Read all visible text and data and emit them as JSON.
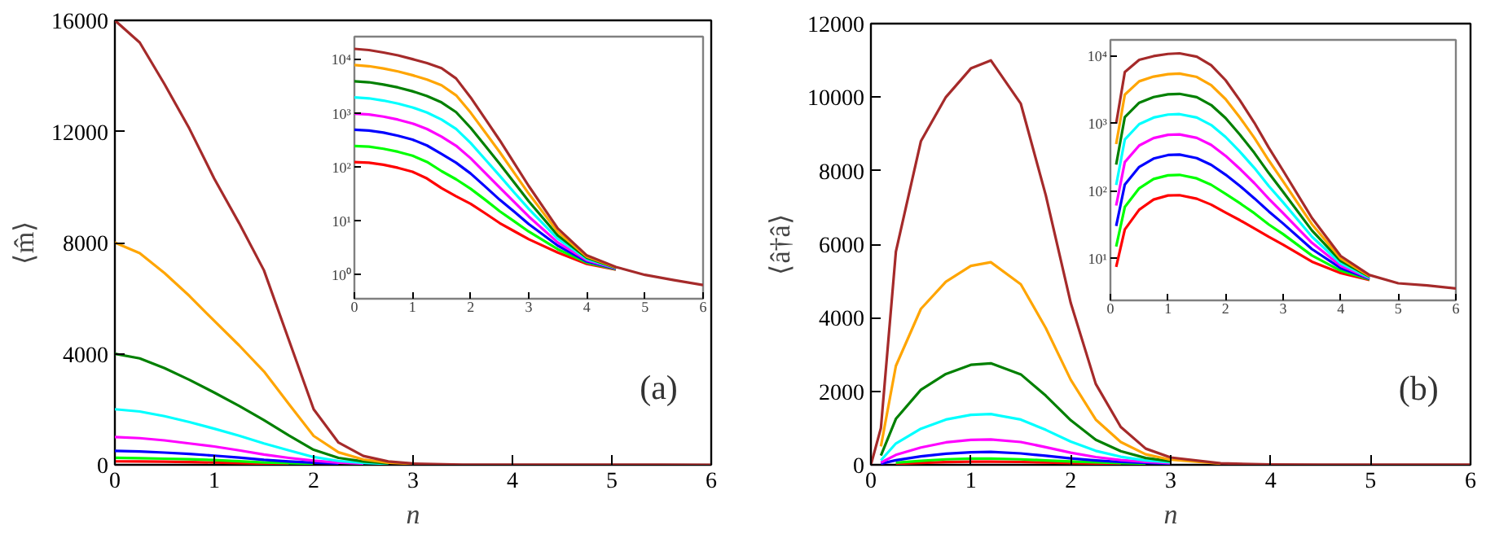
{
  "chart_data": [
    {
      "type": "line",
      "xlabel": "n",
      "ylabel": "⟨m̂⟩",
      "xlim": [
        0,
        6
      ],
      "ylim": [
        0,
        16000
      ],
      "xticks": [
        0,
        1,
        2,
        3,
        4,
        5,
        6
      ],
      "yticks": [
        0,
        4000,
        8000,
        12000,
        16000
      ],
      "annotations": [
        "(a)"
      ],
      "x": [
        0,
        0.25,
        0.5,
        0.75,
        1,
        1.25,
        1.5,
        1.75,
        2,
        2.25,
        2.5,
        2.75,
        3,
        3.5,
        4,
        4.5,
        5,
        5.5,
        6
      ],
      "series": [
        {
          "color": "#ff0000",
          "values": [
            125,
            122,
            112,
            98,
            83,
            62,
            41,
            29,
            null,
            null,
            null,
            null,
            null,
            null,
            null,
            null,
            null,
            null,
            null
          ]
        },
        {
          "color": "#00ff00",
          "values": [
            250,
            240,
            220,
            200,
            170,
            130,
            85,
            60,
            40,
            null,
            null,
            null,
            null,
            null,
            null,
            null,
            null,
            null,
            null
          ]
        },
        {
          "color": "#0000ff",
          "values": [
            500,
            480,
            440,
            390,
            330,
            260,
            180,
            120,
            77,
            44,
            null,
            null,
            null,
            null,
            null,
            null,
            null,
            null,
            null
          ]
        },
        {
          "color": "#ff00ff",
          "values": [
            1000,
            960,
            880,
            770,
            660,
            520,
            370,
            250,
            150,
            79,
            42,
            null,
            null,
            null,
            null,
            null,
            null,
            null,
            null
          ]
        },
        {
          "color": "#00ffff",
          "values": [
            2000,
            1920,
            1750,
            1540,
            1300,
            1050,
            770,
            520,
            280,
            140,
            70,
            34,
            null,
            null,
            null,
            null,
            null,
            null,
            null
          ]
        },
        {
          "color": "#008000",
          "values": [
            4000,
            3830,
            3480,
            3060,
            2600,
            2120,
            1610,
            1060,
            540,
            250,
            120,
            52,
            null,
            null,
            null,
            null,
            null,
            null,
            null
          ]
        },
        {
          "color": "#ffa500",
          "values": [
            8000,
            7620,
            6900,
            6080,
            5180,
            4300,
            3360,
            2190,
            1040,
            450,
            190,
            79,
            33,
            null,
            null,
            null,
            null,
            null,
            null
          ]
        },
        {
          "color": "#a52a2a",
          "values": [
            16000,
            15200,
            13700,
            12100,
            10300,
            8700,
            7000,
            4500,
            2000,
            800,
            320,
            120,
            45,
            7.3,
            2.3,
            1.4,
            1.0,
            0.8,
            0.65
          ]
        }
      ]
    },
    {
      "type": "line",
      "log": "y",
      "xlim": [
        0,
        6
      ],
      "ylim": [
        0.36,
        27000
      ],
      "xticks": [
        0,
        1,
        2,
        3,
        4,
        5,
        6
      ],
      "yticks": [
        {
          "value": 1,
          "label": "10⁰"
        },
        {
          "value": 10,
          "label": "10¹"
        },
        {
          "value": 100,
          "label": "10²"
        },
        {
          "value": 1000,
          "label": "10³"
        },
        {
          "value": 10000,
          "label": "10⁴"
        }
      ],
      "x": [
        0,
        0.25,
        0.5,
        0.75,
        1,
        1.25,
        1.5,
        1.75,
        2,
        2.25,
        2.5,
        2.75,
        3,
        3.5,
        4,
        4.5,
        5,
        5.5,
        6
      ],
      "series": [
        {
          "color": "#ff0000",
          "values": [
            125,
            122,
            112,
            98,
            83,
            62,
            41,
            29,
            21,
            14,
            9.2,
            6.5,
            4.6,
            2.6,
            1.6,
            1.26,
            null,
            null,
            null
          ]
        },
        {
          "color": "#00ff00",
          "values": [
            250,
            243,
            222,
            195,
            165,
            126,
            85,
            60,
            40,
            25,
            15.3,
            9.9,
            6.4,
            3.0,
            1.69,
            1.28,
            null,
            null,
            null
          ]
        },
        {
          "color": "#0000ff",
          "values": [
            500,
            484,
            443,
            388,
            329,
            255,
            178,
            122,
            77,
            44,
            25,
            15,
            8.8,
            3.5,
            1.77,
            1.3,
            null,
            null,
            null
          ]
        },
        {
          "color": "#ff00ff",
          "values": [
            1000,
            964,
            879,
            773,
            655,
            516,
            372,
            252,
            148,
            79,
            42,
            22.7,
            12.2,
            4.0,
            1.87,
            1.32,
            null,
            null,
            null
          ]
        },
        {
          "color": "#00ffff",
          "values": [
            2000,
            1923,
            1746,
            1538,
            1304,
            1047,
            774,
            518,
            284,
            141,
            70,
            34,
            16.9,
            4.7,
            1.97,
            1.34,
            null,
            null,
            null
          ]
        },
        {
          "color": "#008000",
          "values": [
            4000,
            3828,
            3475,
            3062,
            2600,
            2123,
            1614,
            1064,
            544,
            252,
            116,
            52,
            23.4,
            5.4,
            2.07,
            1.36,
            null,
            null,
            null
          ]
        },
        {
          "color": "#ffa500",
          "values": [
            8000,
            7621,
            6902,
            6081,
            5176,
            4295,
            3357,
            2188,
            1043,
            449,
            193,
            79,
            32.5,
            6.3,
            2.19,
            1.38,
            null,
            null,
            null
          ]
        },
        {
          "color": "#a52a2a",
          "values": [
            16000,
            15200,
            13700,
            12100,
            10300,
            8700,
            7000,
            4500,
            2000,
            800,
            320,
            120,
            45,
            7.3,
            2.3,
            1.4,
            1.0,
            0.8,
            0.65
          ]
        }
      ]
    },
    {
      "type": "line",
      "xlabel": "n",
      "ylabel": "⟨â†â⟩",
      "xlim": [
        0,
        6
      ],
      "ylim": [
        0,
        12000
      ],
      "xticks": [
        0,
        1,
        2,
        3,
        4,
        5,
        6
      ],
      "yticks": [
        0,
        2000,
        4000,
        6000,
        8000,
        10000,
        12000
      ],
      "annotations": [
        "(b)"
      ],
      "x": [
        0,
        0.1,
        0.25,
        0.5,
        0.75,
        1,
        1.2,
        1.5,
        1.75,
        2,
        2.25,
        2.5,
        2.75,
        3,
        3.5,
        4,
        4.5,
        5,
        5.5,
        6
      ],
      "series": [
        {
          "color": "#ff0000",
          "values": [
            null,
            null,
            27,
            53,
            75,
            86,
            87,
            77,
            63,
            48,
            37,
            28,
            null,
            null,
            null,
            null,
            null,
            null,
            null,
            null
          ]
        },
        {
          "color": "#00ff00",
          "values": [
            null,
            null,
            58,
            110,
            150,
            170,
            170,
            150,
            120,
            91,
            66,
            47,
            32,
            null,
            null,
            null,
            null,
            null,
            null,
            null
          ]
        },
        {
          "color": "#0000ff",
          "values": [
            null,
            30,
            125,
            230,
            300,
            340,
            350,
            310,
            245,
            175,
            119,
            78,
            50,
            33,
            null,
            null,
            null,
            null,
            null,
            null
          ]
        },
        {
          "color": "#ff00ff",
          "values": [
            null,
            61,
            270,
            470,
            610,
            680,
            690,
            620,
            480,
            330,
            210,
            130,
            77,
            47,
            null,
            null,
            null,
            null,
            null,
            null
          ]
        },
        {
          "color": "#00ffff",
          "values": [
            null,
            123,
            580,
            980,
            1230,
            1360,
            1380,
            1230,
            950,
            630,
            380,
            220,
            119,
            68,
            null,
            null,
            null,
            null,
            null,
            null
          ]
        },
        {
          "color": "#008000",
          "values": [
            null,
            250,
            1250,
            2040,
            2470,
            2720,
            2760,
            2460,
            1880,
            1210,
            680,
            370,
            185,
            97,
            null,
            null,
            null,
            null,
            null,
            null
          ]
        },
        {
          "color": "#ffa500",
          "values": [
            null,
            500,
            2690,
            4240,
            4980,
            5410,
            5510,
            4910,
            3720,
            2310,
            1230,
            620,
            285,
            139,
            32,
            null,
            null,
            null,
            null,
            null
          ]
        },
        {
          "color": "#a52a2a",
          "values": [
            0,
            1000,
            5800,
            8800,
            10000,
            10780,
            11000,
            9820,
            7330,
            4400,
            2200,
            1030,
            440,
            200,
            40,
            10.9,
            5.7,
            4.3,
            4.0,
            3.6
          ]
        }
      ]
    },
    {
      "type": "line",
      "log": "y",
      "xlim": [
        0,
        6
      ],
      "ylim": [
        2.4,
        17400
      ],
      "xticks": [
        0,
        1,
        2,
        3,
        4,
        5,
        6
      ],
      "yticks": [
        {
          "value": 10,
          "label": "10¹"
        },
        {
          "value": 100,
          "label": "10²"
        },
        {
          "value": 1000,
          "label": "10³"
        },
        {
          "value": 10000,
          "label": "10⁴"
        }
      ],
      "x": [
        0.1,
        0.25,
        0.5,
        0.75,
        1,
        1.2,
        1.5,
        1.75,
        2,
        2.25,
        2.5,
        2.75,
        3,
        3.5,
        4,
        4.5,
        5,
        5.5,
        6
      ],
      "series": [
        {
          "color": "#ff0000",
          "values": [
            7.5,
            27,
            53,
            75,
            86,
            87,
            77,
            63,
            48,
            37,
            28,
            21,
            16,
            9,
            6.1,
            4.8,
            null,
            null,
            null
          ]
        },
        {
          "color": "#00ff00",
          "values": [
            15.1,
            58,
            110,
            151,
            171,
            174,
            154,
            124,
            91,
            66,
            47,
            32,
            23,
            11.1,
            6.6,
            4.9,
            null,
            null,
            null
          ]
        },
        {
          "color": "#0000ff",
          "values": [
            30.4,
            125,
            228,
            303,
            342,
            347,
            308,
            245,
            175,
            119,
            78,
            50,
            33,
            13.8,
            7.2,
            5.0,
            null,
            null,
            null
          ]
        },
        {
          "color": "#ff00ff",
          "values": [
            61,
            269,
            473,
            611,
            682,
            692,
            615,
            483,
            333,
            213,
            131,
            77,
            47,
            17.1,
            7.8,
            5.1,
            null,
            null,
            null
          ]
        },
        {
          "color": "#00ffff",
          "values": [
            123,
            580,
            982,
            1228,
            1361,
            1381,
            1230,
            953,
            634,
            382,
            220,
            119,
            68,
            21.1,
            8.5,
            5.2,
            null,
            null,
            null
          ]
        },
        {
          "color": "#008000",
          "values": [
            247,
            1250,
            2040,
            2472,
            2716,
            2760,
            2460,
            1884,
            1211,
            684,
            368,
            185,
            97,
            26.1,
            9.2,
            5.4,
            null,
            null,
            null
          ]
        },
        {
          "color": "#ffa500",
          "values": [
            498,
            2690,
            4236,
            4976,
            5410,
            5508,
            4912,
            3715,
            2307,
            1225,
            615,
            285,
            139,
            32.3,
            10.0,
            5.5,
            null,
            null,
            null
          ]
        },
        {
          "color": "#a52a2a",
          "values": [
            1000,
            5800,
            8800,
            10000,
            10780,
            11000,
            9820,
            7330,
            4400,
            2200,
            1030,
            440,
            200,
            40,
            10.9,
            5.7,
            4.3,
            4.0,
            3.6
          ]
        }
      ]
    }
  ]
}
